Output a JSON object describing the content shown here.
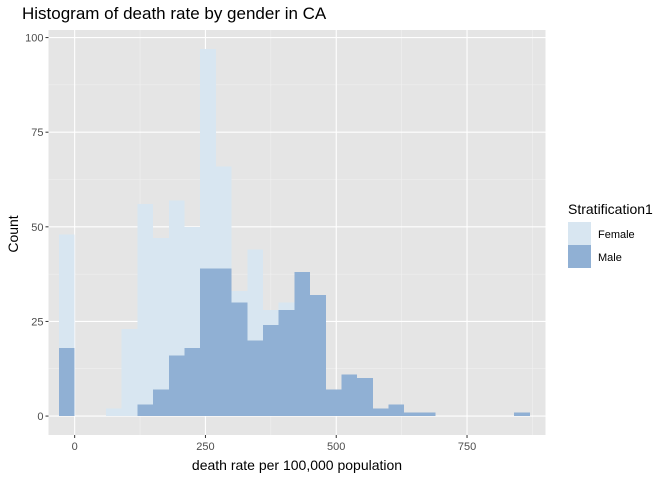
{
  "chart_data": {
    "type": "bar",
    "subtype": "histogram",
    "title": "Histogram of death rate by gender in CA",
    "xlabel": "death rate per 100,000 population",
    "ylabel": "Count",
    "xlim": [
      -50,
      900
    ],
    "ylim": [
      -5,
      102
    ],
    "xticks": [
      0,
      250,
      500,
      750
    ],
    "yticks": [
      0,
      25,
      50,
      75,
      100
    ],
    "grid": true,
    "background": "#e5e5e5",
    "bin_width": 30,
    "legend": {
      "title": "Stratification1",
      "position": "right",
      "entries": [
        "Female",
        "Male"
      ]
    },
    "series": [
      {
        "name": "Female",
        "color": "#d8e6f1",
        "bins": [
          {
            "x": -15,
            "count": 48
          },
          {
            "x": 75,
            "count": 2
          },
          {
            "x": 105,
            "count": 23
          },
          {
            "x": 135,
            "count": 56
          },
          {
            "x": 165,
            "count": 47
          },
          {
            "x": 195,
            "count": 57
          },
          {
            "x": 225,
            "count": 50
          },
          {
            "x": 255,
            "count": 97
          },
          {
            "x": 285,
            "count": 66
          },
          {
            "x": 315,
            "count": 33
          },
          {
            "x": 345,
            "count": 44
          },
          {
            "x": 375,
            "count": 28
          },
          {
            "x": 405,
            "count": 30
          },
          {
            "x": 435,
            "count": 34
          },
          {
            "x": 465,
            "count": 7
          },
          {
            "x": 495,
            "count": 7
          },
          {
            "x": 525,
            "count": 6
          },
          {
            "x": 555,
            "count": 1
          },
          {
            "x": 615,
            "count": 1
          }
        ]
      },
      {
        "name": "Male",
        "color": "#90b0d4",
        "bins": [
          {
            "x": -15,
            "count": 18
          },
          {
            "x": 135,
            "count": 3
          },
          {
            "x": 165,
            "count": 7
          },
          {
            "x": 195,
            "count": 16
          },
          {
            "x": 225,
            "count": 18
          },
          {
            "x": 255,
            "count": 39
          },
          {
            "x": 285,
            "count": 39
          },
          {
            "x": 315,
            "count": 30
          },
          {
            "x": 345,
            "count": 20
          },
          {
            "x": 375,
            "count": 24
          },
          {
            "x": 405,
            "count": 28
          },
          {
            "x": 435,
            "count": 38
          },
          {
            "x": 465,
            "count": 32
          },
          {
            "x": 495,
            "count": 7
          },
          {
            "x": 525,
            "count": 11
          },
          {
            "x": 555,
            "count": 10
          },
          {
            "x": 585,
            "count": 2
          },
          {
            "x": 615,
            "count": 3
          },
          {
            "x": 645,
            "count": 1
          },
          {
            "x": 675,
            "count": 1
          },
          {
            "x": 855,
            "count": 1
          }
        ]
      }
    ]
  }
}
